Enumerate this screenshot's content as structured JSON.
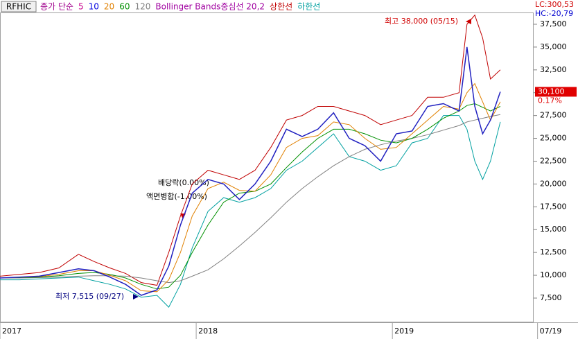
{
  "chart_data": {
    "type": "line",
    "symbol": "RFHIC",
    "legend": [
      {
        "label": "종가 단순",
        "color": "#a0008c"
      },
      {
        "label": "5",
        "color": "#c8008c"
      },
      {
        "label": "10",
        "color": "#0000e0"
      },
      {
        "label": "20",
        "color": "#e08000"
      },
      {
        "label": "60",
        "color": "#009000"
      },
      {
        "label": "120",
        "color": "#808080"
      },
      {
        "label": "Bollinger Bands중심선 20,2",
        "color": "#a000a0"
      },
      {
        "label": "상한선",
        "color": "#c00000"
      },
      {
        "label": "하한선",
        "color": "#00a0a0"
      }
    ],
    "x": [
      2017.0,
      2017.1,
      2017.2,
      2017.3,
      2017.4,
      2017.48,
      2017.56,
      2017.64,
      2017.72,
      2017.8,
      2017.86,
      2017.92,
      2017.98,
      2018.06,
      2018.14,
      2018.22,
      2018.3,
      2018.38,
      2018.46,
      2018.54,
      2018.62,
      2018.7,
      2018.78,
      2018.86,
      2018.94,
      2019.02,
      2019.1,
      2019.18,
      2019.26,
      2019.34,
      2019.38,
      2019.42,
      2019.46,
      2019.5,
      2019.55
    ],
    "series": [
      {
        "legend": 6,
        "color": "#c00000",
        "width": 1,
        "values": [
          9900,
          10100,
          10300,
          10800,
          12300,
          11500,
          10800,
          10200,
          9200,
          8900,
          12500,
          16500,
          20000,
          21500,
          21000,
          20500,
          21500,
          24000,
          27000,
          27500,
          28500,
          28500,
          28000,
          27500,
          26500,
          27000,
          27500,
          29500,
          29500,
          30000,
          37500,
          38500,
          36000,
          31500,
          32500
        ]
      },
      {
        "legend": 7,
        "color": "#00a0a0",
        "width": 1,
        "values": [
          9500,
          9500,
          9600,
          9700,
          9800,
          9400,
          9000,
          8500,
          7600,
          7800,
          6500,
          9000,
          13000,
          17000,
          18500,
          18000,
          18500,
          19500,
          21500,
          22500,
          24000,
          25500,
          23000,
          22500,
          21500,
          22000,
          24500,
          25000,
          27500,
          27500,
          26000,
          22500,
          20500,
          22500,
          26800
        ]
      },
      {
        "legend": 5,
        "color": "#808080",
        "width": 1,
        "values": [
          9700,
          9700,
          9750,
          9800,
          9900,
          9950,
          9950,
          9900,
          9700,
          9400,
          9200,
          9400,
          9900,
          10600,
          11800,
          13200,
          14700,
          16300,
          18000,
          19500,
          20800,
          22000,
          23000,
          23800,
          24300,
          24700,
          25000,
          25400,
          25900,
          26400,
          26800,
          27000,
          27200,
          27400,
          27600
        ]
      },
      {
        "legend": 4,
        "color": "#009000",
        "width": 1,
        "values": [
          9700,
          9750,
          9800,
          9950,
          10200,
          10300,
          10100,
          9700,
          9000,
          8500,
          8700,
          10000,
          12500,
          15500,
          18000,
          19000,
          19200,
          20000,
          21800,
          23500,
          25000,
          26000,
          26000,
          25500,
          24800,
          24500,
          25000,
          26000,
          27200,
          28000,
          28600,
          28800,
          28400,
          28000,
          28500
        ]
      },
      {
        "legend": 3,
        "color": "#e08000",
        "width": 1,
        "values": [
          9700,
          9780,
          9850,
          10100,
          10500,
          10500,
          10000,
          9400,
          8300,
          8200,
          9500,
          12500,
          16500,
          19500,
          20200,
          19300,
          19200,
          21000,
          24000,
          25000,
          25300,
          26800,
          26500,
          25000,
          23800,
          24000,
          25500,
          27000,
          28500,
          28200,
          30000,
          31000,
          29000,
          27000,
          29000
        ]
      },
      {
        "legend": 1,
        "color": "#2020c0",
        "width": 1.5,
        "values": [
          9700,
          9800,
          9900,
          10300,
          10700,
          10500,
          9800,
          9000,
          7800,
          8400,
          11000,
          15500,
          19000,
          20500,
          20000,
          18300,
          20000,
          22500,
          26000,
          25200,
          26000,
          27800,
          25000,
          24200,
          22500,
          25500,
          25800,
          28500,
          28800,
          28000,
          35000,
          28500,
          25500,
          27000,
          30100
        ]
      }
    ],
    "xlim": [
      2017,
      2019.72
    ],
    "ylim": [
      4840,
      38790
    ],
    "xticks": [
      2017,
      2018,
      2019,
      {
        "value": 2019.74,
        "label": "07/19"
      }
    ],
    "yticks": [
      {
        "value": 7500,
        "label": "7,500"
      },
      {
        "value": 10000,
        "label": "10,000"
      },
      {
        "value": 12500,
        "label": "12,500"
      },
      {
        "value": 15000,
        "label": "15,000"
      },
      {
        "value": 17500,
        "label": "17,500"
      },
      {
        "value": 20000,
        "label": "20,000"
      },
      {
        "value": 22500,
        "label": "22,500"
      },
      {
        "value": 25000,
        "label": "25,000"
      },
      {
        "value": 27500,
        "label": "27,500"
      },
      {
        "value": 30000,
        "label": "30,000"
      },
      {
        "value": 32500,
        "label": "32,500"
      },
      {
        "value": 35000,
        "label": "35,000"
      },
      {
        "value": 37500,
        "label": "37,500"
      }
    ],
    "last_price": {
      "value": 30100,
      "label": "30,100"
    },
    "change_label": "0.17%",
    "lc_label": "LC:300,53",
    "hc_label": "HC:-20,79",
    "annotations": {
      "high": "최고 38,000 (05/15)",
      "low": "최저 7,515 (09/27)",
      "dividend": "배당락(0.00%)",
      "split": "액면병합(-1.00%)"
    }
  }
}
